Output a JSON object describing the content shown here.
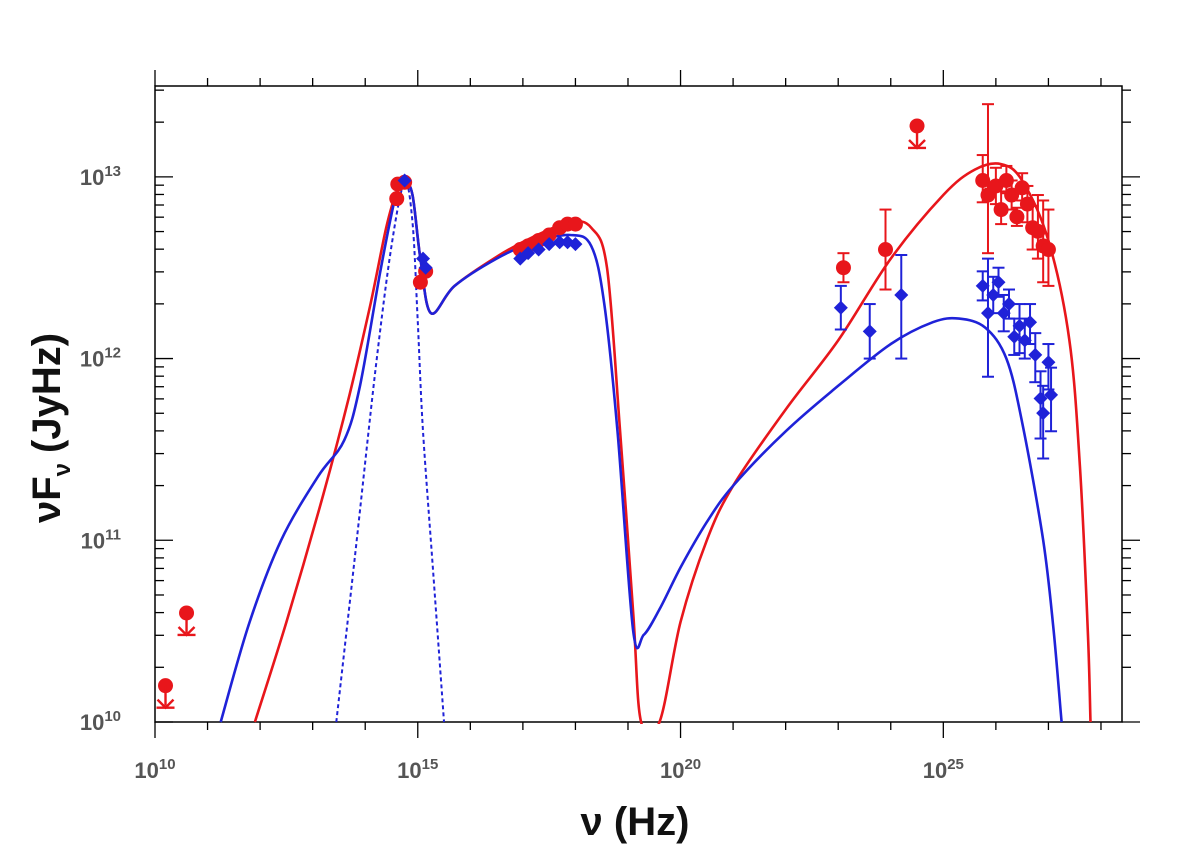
{
  "chart_data": {
    "type": "scatter",
    "title": "",
    "xlabel": "ν (Hz)",
    "ylabel": "νF",
    "ylabel_sub": "ν",
    "ylabel_unit": "(JyHz)",
    "x_scale": "log",
    "y_scale": "log",
    "xlim_log10": [
      10,
      28.4
    ],
    "ylim_log10": [
      10,
      13.5
    ],
    "x_ticks": [
      {
        "log": 10,
        "base": "10",
        "exp": "10"
      },
      {
        "log": 15,
        "base": "10",
        "exp": "15"
      },
      {
        "log": 20,
        "base": "10",
        "exp": "20"
      },
      {
        "log": 25,
        "base": "10",
        "exp": "25"
      }
    ],
    "y_ticks": [
      {
        "log": 10,
        "base": "10",
        "exp": "10"
      },
      {
        "log": 11,
        "base": "10",
        "exp": "11"
      },
      {
        "log": 12,
        "base": "10",
        "exp": "12"
      },
      {
        "log": 13,
        "base": "10",
        "exp": "13"
      }
    ],
    "grid": false,
    "colors": {
      "red": "#e8161b",
      "blue": "#1f22d8"
    },
    "series": [
      {
        "name": "red-model",
        "kind": "line",
        "color": "#e8161b",
        "dash": false,
        "points": [
          [
            11.9,
            10.0
          ],
          [
            12.5,
            10.55
          ],
          [
            13.2,
            11.25
          ],
          [
            13.7,
            11.8
          ],
          [
            14.1,
            12.3
          ],
          [
            14.4,
            12.72
          ],
          [
            14.6,
            12.92
          ],
          [
            14.75,
            12.97
          ],
          [
            14.9,
            12.9
          ],
          [
            15.05,
            12.55
          ],
          [
            15.25,
            12.25
          ],
          [
            15.7,
            12.4
          ],
          [
            16.5,
            12.56
          ],
          [
            17.2,
            12.67
          ],
          [
            17.9,
            12.75
          ],
          [
            18.3,
            12.72
          ],
          [
            18.6,
            12.5
          ],
          [
            18.85,
            11.6
          ],
          [
            19.1,
            10.6
          ],
          [
            19.25,
            10.0
          ],
          [
            19.6,
            10.0
          ],
          [
            20.0,
            10.55
          ],
          [
            20.5,
            11.0
          ],
          [
            21.0,
            11.3
          ],
          [
            22.0,
            11.72
          ],
          [
            23.0,
            12.1
          ],
          [
            24.0,
            12.55
          ],
          [
            25.0,
            12.9
          ],
          [
            25.6,
            13.04
          ],
          [
            26.1,
            13.07
          ],
          [
            26.5,
            12.98
          ],
          [
            27.0,
            12.65
          ],
          [
            27.4,
            12.1
          ],
          [
            27.6,
            11.4
          ],
          [
            27.75,
            10.5
          ],
          [
            27.8,
            10.0
          ]
        ]
      },
      {
        "name": "blue-model",
        "kind": "line",
        "color": "#1f22d8",
        "dash": false,
        "points": [
          [
            11.25,
            10.0
          ],
          [
            11.8,
            10.55
          ],
          [
            12.4,
            11.0
          ],
          [
            13.1,
            11.35
          ],
          [
            13.6,
            11.55
          ],
          [
            13.9,
            11.85
          ],
          [
            14.3,
            12.5
          ],
          [
            14.6,
            12.92
          ],
          [
            14.75,
            12.97
          ],
          [
            14.9,
            12.9
          ],
          [
            15.05,
            12.55
          ],
          [
            15.25,
            12.25
          ],
          [
            15.7,
            12.4
          ],
          [
            16.5,
            12.55
          ],
          [
            17.2,
            12.64
          ],
          [
            17.9,
            12.68
          ],
          [
            18.3,
            12.62
          ],
          [
            18.55,
            12.3
          ],
          [
            18.8,
            11.6
          ],
          [
            19.1,
            10.5
          ],
          [
            19.3,
            10.48
          ],
          [
            19.6,
            10.62
          ],
          [
            20.0,
            10.85
          ],
          [
            20.5,
            11.1
          ],
          [
            21.0,
            11.3
          ],
          [
            22.0,
            11.6
          ],
          [
            23.0,
            11.85
          ],
          [
            24.0,
            12.08
          ],
          [
            24.8,
            12.2
          ],
          [
            25.3,
            12.22
          ],
          [
            25.8,
            12.17
          ],
          [
            26.2,
            12.0
          ],
          [
            26.5,
            11.65
          ],
          [
            26.9,
            11.0
          ],
          [
            27.1,
            10.5
          ],
          [
            27.25,
            10.0
          ]
        ]
      },
      {
        "name": "blue-dotted-component",
        "kind": "line",
        "color": "#1f22d8",
        "dash": true,
        "points": [
          [
            13.45,
            10.0
          ],
          [
            13.8,
            10.9
          ],
          [
            14.2,
            11.95
          ],
          [
            14.5,
            12.62
          ],
          [
            14.75,
            12.97
          ],
          [
            14.9,
            12.75
          ],
          [
            15.0,
            12.2
          ],
          [
            15.1,
            11.6
          ],
          [
            15.3,
            10.8
          ],
          [
            15.5,
            10.0
          ]
        ]
      },
      {
        "name": "red-data",
        "kind": "points",
        "marker": "circle",
        "color": "#e8161b",
        "points": [
          [
            14.6,
            12.88,
            null,
            null
          ],
          [
            14.62,
            12.96,
            null,
            null
          ],
          [
            14.75,
            12.97,
            null,
            null
          ],
          [
            15.05,
            12.42,
            null,
            null
          ],
          [
            15.15,
            12.48,
            null,
            null
          ],
          [
            16.95,
            12.6,
            null,
            null
          ],
          [
            17.1,
            12.62,
            null,
            null
          ],
          [
            17.3,
            12.65,
            null,
            null
          ],
          [
            17.5,
            12.68,
            null,
            null
          ],
          [
            17.7,
            12.72,
            null,
            null
          ],
          [
            17.85,
            12.74,
            null,
            null
          ],
          [
            18.0,
            12.74,
            null,
            null
          ],
          [
            23.1,
            12.5,
            0.08,
            0.08
          ],
          [
            23.9,
            12.6,
            0.22,
            0.22
          ],
          [
            25.75,
            12.98,
            0.12,
            0.14
          ],
          [
            25.85,
            12.9,
            0.32,
            0.5
          ],
          [
            26.0,
            12.95,
            0.1,
            0.1
          ],
          [
            26.1,
            12.82,
            0.08,
            0.1
          ],
          [
            26.2,
            12.98,
            0.07,
            0.08
          ],
          [
            26.3,
            12.9,
            0.08,
            0.08
          ],
          [
            26.4,
            12.78,
            0.05,
            0.05
          ],
          [
            26.5,
            12.94,
            0.07,
            0.08
          ],
          [
            26.6,
            12.85,
            0.1,
            0.1
          ],
          [
            26.7,
            12.72,
            0.12,
            0.12
          ],
          [
            26.8,
            12.7,
            0.15,
            0.2
          ],
          [
            26.9,
            12.62,
            0.2,
            0.25
          ],
          [
            27.0,
            12.6,
            0.2,
            0.22
          ]
        ]
      },
      {
        "name": "red-upper-limits",
        "kind": "upper-limits",
        "color": "#e8161b",
        "points": [
          [
            10.2,
            10.2
          ],
          [
            10.6,
            10.6
          ],
          [
            24.5,
            13.28
          ]
        ]
      },
      {
        "name": "blue-data",
        "kind": "points",
        "marker": "diamond",
        "color": "#1f22d8",
        "points": [
          [
            14.75,
            12.98,
            null,
            null
          ],
          [
            15.1,
            12.55,
            null,
            null
          ],
          [
            15.15,
            12.5,
            null,
            null
          ],
          [
            16.95,
            12.55,
            null,
            null
          ],
          [
            17.1,
            12.58,
            null,
            null
          ],
          [
            17.3,
            12.6,
            null,
            null
          ],
          [
            17.5,
            12.63,
            null,
            null
          ],
          [
            17.7,
            12.64,
            null,
            null
          ],
          [
            17.85,
            12.64,
            null,
            null
          ],
          [
            18.0,
            12.63,
            null,
            null
          ],
          [
            23.05,
            12.28,
            0.12,
            0.12
          ],
          [
            23.6,
            12.15,
            0.15,
            0.15
          ],
          [
            24.2,
            12.35,
            0.35,
            0.22
          ],
          [
            25.75,
            12.4,
            0.08,
            0.08
          ],
          [
            25.85,
            12.25,
            0.35,
            0.3
          ],
          [
            25.95,
            12.35,
            0.1,
            0.1
          ],
          [
            26.05,
            12.42,
            0.08,
            0.08
          ],
          [
            26.15,
            12.25,
            0.1,
            0.1
          ],
          [
            26.25,
            12.3,
            0.08,
            0.08
          ],
          [
            26.35,
            12.12,
            0.1,
            0.1
          ],
          [
            26.45,
            12.18,
            0.15,
            0.12
          ],
          [
            26.55,
            12.1,
            0.1,
            0.12
          ],
          [
            26.65,
            12.2,
            0.12,
            0.1
          ],
          [
            26.75,
            12.02,
            0.15,
            0.12
          ],
          [
            26.85,
            11.78,
            0.22,
            0.15
          ],
          [
            26.9,
            11.7,
            0.25,
            0.15
          ],
          [
            27.0,
            11.98,
            0.15,
            0.1
          ],
          [
            27.05,
            11.8,
            0.2,
            0.15
          ]
        ]
      }
    ]
  }
}
